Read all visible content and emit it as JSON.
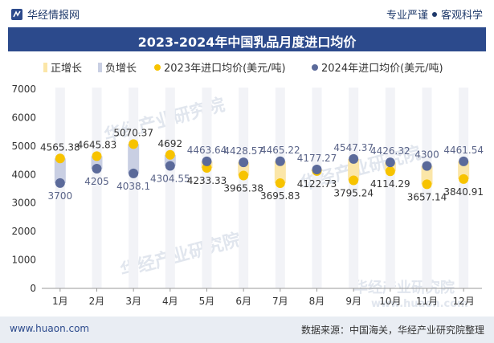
{
  "header": {
    "brand": "华经情报网",
    "slogan_left": "专业严谨",
    "slogan_right": "客观科学"
  },
  "colors": {
    "positive": "#fbe6a8",
    "negative": "#c9cfe3",
    "series2023": "#f7c300",
    "series2024": "#5b6a9a",
    "title_bg": "#2c4a8c"
  },
  "footer": {
    "site": "www.huaon.com",
    "source": "数据来源：中国海关，华经产业研究院整理"
  },
  "chart_data": {
    "type": "line",
    "title": "2023-2024年中国乳品月度进口均价",
    "categories": [
      "1月",
      "2月",
      "3月",
      "4月",
      "5月",
      "6月",
      "7月",
      "8月",
      "9月",
      "10月",
      "11月",
      "12月"
    ],
    "series": [
      {
        "name": "2023年进口均价(美元/吨)",
        "values": [
          4565.38,
          4645.83,
          5070.37,
          4692,
          4233.33,
          3965.38,
          3695.83,
          4122.73,
          3795.24,
          4114.29,
          3657.14,
          3840.91
        ]
      },
      {
        "name": "2024年进口均价(美元/吨)",
        "values": [
          3700,
          4205,
          4038.1,
          4304.55,
          4463.64,
          4428.57,
          4465.22,
          4177.27,
          4547.37,
          4426.32,
          4300,
          4461.54
        ]
      }
    ],
    "legend": [
      "正增长",
      "负增长",
      "2023年进口均价(美元/吨)",
      "2024年进口均价(美元/吨)"
    ],
    "ylim": [
      0,
      7000
    ],
    "yticks": [
      0,
      1000,
      2000,
      3000,
      4000,
      5000,
      6000,
      7000
    ],
    "watermark": "华经产业研究院",
    "watermark_site": "www.huaon.com"
  }
}
